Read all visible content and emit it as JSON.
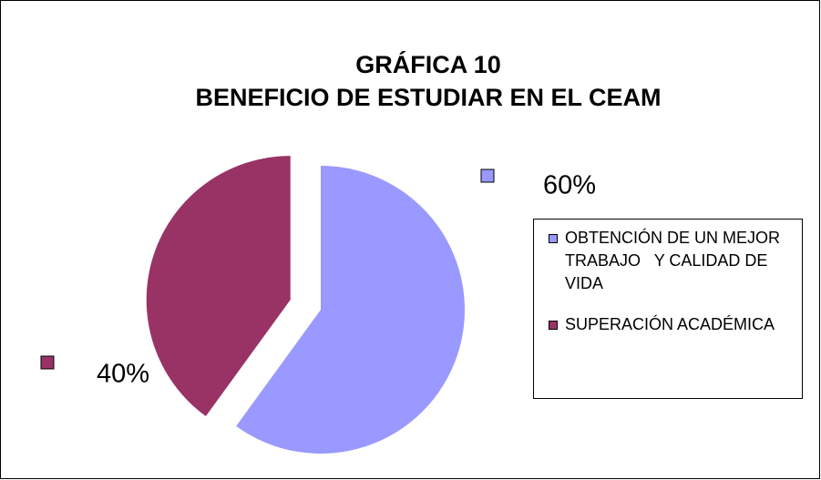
{
  "chart_data": {
    "type": "pie",
    "title": "GRÁFICA 10",
    "subtitle": "BENEFICIO DE ESTUDIAR EN EL CEAM",
    "categories": [
      "OBTENCIÓN DE UN MEJOR TRABAJO   Y CALIDAD DE VIDA",
      "SUPERACIÓN ACADÉMICA"
    ],
    "values": [
      60,
      40
    ],
    "value_labels": [
      "60%",
      "40%"
    ],
    "colors": [
      "#9999ff",
      "#993366"
    ],
    "exploded": [
      false,
      true
    ],
    "legend": "right"
  }
}
